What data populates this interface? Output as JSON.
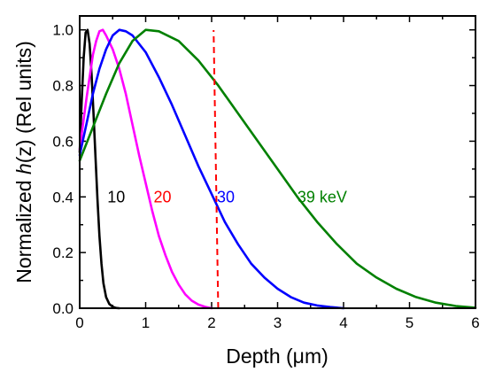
{
  "chart_data": {
    "type": "line",
    "xlabel": {
      "pre": "Depth (",
      "sym": "μ",
      "post": "m)"
    },
    "ylabel": {
      "pre": "Normalized ",
      "ital": "h",
      "post": "(z)  (Rel units)"
    },
    "xlim": [
      0,
      6
    ],
    "ylim": [
      0,
      1.05
    ],
    "x_ticks": [
      "0",
      "1",
      "2",
      "3",
      "4",
      "5",
      "6"
    ],
    "y_ticks": [
      "0.0",
      "0.2",
      "0.4",
      "0.6",
      "0.8",
      "1.0"
    ],
    "grid": false,
    "series": [
      {
        "name": "10",
        "color": "#000000",
        "label_color": "#000000",
        "x": [
          0,
          0.03,
          0.06,
          0.09,
          0.12,
          0.15,
          0.18,
          0.21,
          0.24,
          0.27,
          0.3,
          0.33,
          0.36,
          0.4,
          0.45,
          0.5,
          0.55,
          0.6
        ],
        "y": [
          0.56,
          0.74,
          0.9,
          0.99,
          1.0,
          0.95,
          0.84,
          0.7,
          0.54,
          0.39,
          0.26,
          0.16,
          0.09,
          0.04,
          0.015,
          0.005,
          0.001,
          0
        ]
      },
      {
        "name": "20",
        "color": "#ff00ff",
        "label_color": "#ff0000",
        "x": [
          0,
          0.05,
          0.1,
          0.15,
          0.2,
          0.25,
          0.3,
          0.35,
          0.4,
          0.5,
          0.6,
          0.7,
          0.8,
          0.9,
          1.0,
          1.1,
          1.2,
          1.3,
          1.4,
          1.5,
          1.6,
          1.7,
          1.8,
          1.9,
          2.0
        ],
        "y": [
          0.57,
          0.66,
          0.75,
          0.83,
          0.91,
          0.96,
          0.995,
          1.0,
          0.98,
          0.93,
          0.86,
          0.77,
          0.66,
          0.55,
          0.45,
          0.35,
          0.26,
          0.19,
          0.13,
          0.085,
          0.05,
          0.027,
          0.013,
          0.005,
          0
        ]
      },
      {
        "name": "30",
        "color": "#0000ff",
        "label_color": "#0000ff",
        "x": [
          0,
          0.1,
          0.2,
          0.3,
          0.4,
          0.5,
          0.6,
          0.7,
          0.8,
          1.0,
          1.2,
          1.4,
          1.6,
          1.8,
          2.0,
          2.2,
          2.4,
          2.6,
          2.8,
          3.0,
          3.2,
          3.4,
          3.6,
          3.8,
          4.0
        ],
        "y": [
          0.55,
          0.66,
          0.77,
          0.86,
          0.93,
          0.98,
          1.0,
          0.995,
          0.98,
          0.92,
          0.83,
          0.73,
          0.62,
          0.51,
          0.41,
          0.31,
          0.23,
          0.16,
          0.11,
          0.07,
          0.04,
          0.02,
          0.01,
          0.004,
          0
        ]
      },
      {
        "name": "39 keV",
        "color": "#008000",
        "label_color": "#008000",
        "x": [
          0,
          0.2,
          0.4,
          0.6,
          0.8,
          1.0,
          1.2,
          1.5,
          1.8,
          2.1,
          2.4,
          2.7,
          3.0,
          3.3,
          3.6,
          3.9,
          4.2,
          4.5,
          4.8,
          5.1,
          5.4,
          5.7,
          6.0
        ],
        "y": [
          0.53,
          0.65,
          0.77,
          0.88,
          0.96,
          1.0,
          0.995,
          0.96,
          0.89,
          0.8,
          0.7,
          0.6,
          0.5,
          0.4,
          0.31,
          0.23,
          0.16,
          0.11,
          0.07,
          0.04,
          0.02,
          0.008,
          0.002
        ]
      }
    ],
    "annotations": [
      {
        "type": "vline",
        "x_bottom": 2.1,
        "x_top": 2.03,
        "color": "#ff0000",
        "style": "dashed"
      }
    ],
    "curve_label_positions": [
      {
        "series": 0,
        "x": 0.42,
        "y": 0.38
      },
      {
        "series": 1,
        "x": 1.12,
        "y": 0.38
      },
      {
        "series": 2,
        "x": 2.08,
        "y": 0.38
      },
      {
        "series": 3,
        "x": 3.3,
        "y": 0.38
      }
    ]
  }
}
